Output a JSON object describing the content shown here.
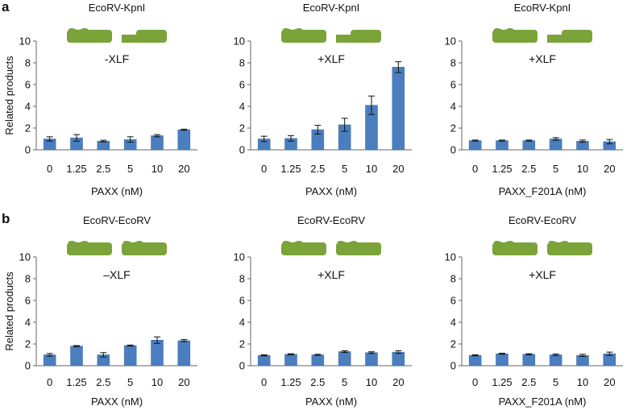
{
  "panels": [
    {
      "letter": "a",
      "row": 0
    },
    {
      "letter": "b",
      "row": 1
    }
  ],
  "colors": {
    "bar": "#4a7ebf",
    "bar_edge": "#3a689f",
    "dna": "#7aa33a",
    "axis": "#666666",
    "text": "#111111"
  },
  "chart_data": [
    {
      "type": "bar",
      "panel": "a",
      "col": 0,
      "substrate": "EcoRV-KpnI",
      "ends": [
        "blunt",
        "overhang"
      ],
      "annotation": "-XLF",
      "xlabel": "PAXX (nM)",
      "ylabel": "Related products",
      "ylim": [
        0,
        10
      ],
      "yticks": [
        "0",
        "2",
        "4",
        "6",
        "8",
        "10"
      ],
      "categories": [
        "0",
        "1.25",
        "2.5",
        "5",
        "10",
        "20"
      ],
      "values": [
        1.0,
        1.1,
        0.8,
        0.95,
        1.3,
        1.85
      ],
      "errors": [
        0.2,
        0.3,
        0.08,
        0.25,
        0.1,
        0.05
      ]
    },
    {
      "type": "bar",
      "panel": "a",
      "col": 1,
      "substrate": "EcoRV-KpnI",
      "ends": [
        "blunt",
        "overhang"
      ],
      "annotation": "+XLF",
      "xlabel": "PAXX (nM)",
      "ylabel": "",
      "ylim": [
        0,
        10
      ],
      "yticks": [
        "0",
        "2",
        "4",
        "6",
        "8",
        "10"
      ],
      "categories": [
        "0",
        "1.25",
        "2.5",
        "5",
        "10",
        "20"
      ],
      "values": [
        1.0,
        1.05,
        1.85,
        2.3,
        4.1,
        7.6
      ],
      "errors": [
        0.25,
        0.25,
        0.4,
        0.6,
        0.85,
        0.5
      ]
    },
    {
      "type": "bar",
      "panel": "a",
      "col": 2,
      "substrate": "EcoRV-KpnI",
      "ends": [
        "blunt",
        "overhang"
      ],
      "annotation": "+XLF",
      "xlabel": "PAXX_F201A (nM)",
      "ylabel": "",
      "ylim": [
        0,
        10
      ],
      "yticks": [
        "0",
        "2",
        "4",
        "6",
        "8",
        "10"
      ],
      "categories": [
        "0",
        "1.25",
        "2.5",
        "5",
        "10",
        "20"
      ],
      "values": [
        0.85,
        0.85,
        0.85,
        1.0,
        0.8,
        0.75
      ],
      "errors": [
        0.05,
        0.05,
        0.05,
        0.12,
        0.1,
        0.2
      ]
    },
    {
      "type": "bar",
      "panel": "b",
      "col": 0,
      "substrate": "EcoRV-EcoRV",
      "ends": [
        "blunt",
        "blunt"
      ],
      "annotation": "–XLF",
      "xlabel": "PAXX (nM)",
      "ylabel": "Related products",
      "ylim": [
        0,
        10
      ],
      "yticks": [
        "0",
        "2",
        "4",
        "6",
        "8",
        "10"
      ],
      "categories": [
        "0",
        "1.25",
        "2.5",
        "5",
        "10",
        "20"
      ],
      "values": [
        1.0,
        1.8,
        1.0,
        1.85,
        2.35,
        2.3
      ],
      "errors": [
        0.12,
        0.05,
        0.2,
        0.05,
        0.3,
        0.1
      ]
    },
    {
      "type": "bar",
      "panel": "b",
      "col": 1,
      "substrate": "EcoRV-EcoRV",
      "ends": [
        "blunt",
        "blunt"
      ],
      "annotation": "+XLF",
      "xlabel": "PAXX (nM)",
      "ylabel": "",
      "ylim": [
        0,
        10
      ],
      "yticks": [
        "0",
        "2",
        "4",
        "6",
        "8",
        "10"
      ],
      "categories": [
        "0",
        "1.25",
        "2.5",
        "5",
        "10",
        "20"
      ],
      "values": [
        0.95,
        1.05,
        1.0,
        1.3,
        1.2,
        1.25
      ],
      "errors": [
        0.05,
        0.05,
        0.05,
        0.08,
        0.08,
        0.12
      ]
    },
    {
      "type": "bar",
      "panel": "b",
      "col": 2,
      "substrate": "EcoRV-EcoRV",
      "ends": [
        "blunt",
        "blunt"
      ],
      "annotation": "+XLF",
      "xlabel": "PAXX_F201A (nM)",
      "ylabel": "",
      "ylim": [
        0,
        10
      ],
      "yticks": [
        "0",
        "2",
        "4",
        "6",
        "8",
        "10"
      ],
      "categories": [
        "0",
        "1.25",
        "2.5",
        "5",
        "10",
        "20"
      ],
      "values": [
        0.95,
        1.1,
        1.05,
        1.0,
        0.95,
        1.1
      ],
      "errors": [
        0.05,
        0.05,
        0.05,
        0.08,
        0.1,
        0.15
      ]
    }
  ]
}
